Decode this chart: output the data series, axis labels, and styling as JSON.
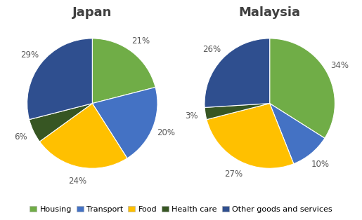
{
  "japan": {
    "title": "Japan",
    "values": [
      21,
      20,
      24,
      6,
      29
    ],
    "labels": [
      "21%",
      "20%",
      "24%",
      "6%",
      "29%"
    ]
  },
  "malaysia": {
    "title": "Malaysia",
    "values": [
      34,
      10,
      27,
      3,
      26
    ],
    "labels": [
      "34%",
      "10%",
      "27%",
      "3%",
      "26%"
    ]
  },
  "categories": [
    "Housing",
    "Transport",
    "Food",
    "Health care",
    "Other goods and services"
  ],
  "colors": [
    "#70AD47",
    "#4472C4",
    "#FFC000",
    "#375623",
    "#2F4F8F"
  ],
  "title_fontsize": 13,
  "label_fontsize": 8.5,
  "legend_fontsize": 8,
  "label_color": "#595959",
  "background_color": "#FFFFFF",
  "startangle": 90
}
